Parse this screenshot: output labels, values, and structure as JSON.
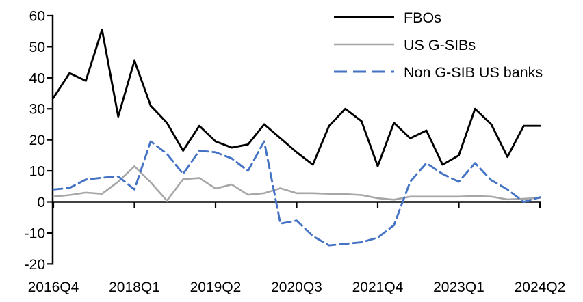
{
  "chart_data": {
    "type": "line",
    "x": [
      "2016Q4",
      "2017Q1",
      "2017Q2",
      "2017Q3",
      "2017Q4",
      "2018Q1",
      "2018Q2",
      "2018Q3",
      "2018Q4",
      "2019Q1",
      "2019Q2",
      "2019Q3",
      "2019Q4",
      "2020Q1",
      "2020Q2",
      "2020Q3",
      "2020Q4",
      "2021Q1",
      "2021Q2",
      "2021Q3",
      "2021Q4",
      "2022Q1",
      "2022Q2",
      "2022Q3",
      "2022Q4",
      "2023Q1",
      "2023Q2",
      "2023Q3",
      "2023Q4",
      "2024Q1",
      "2024Q2"
    ],
    "series": [
      {
        "name": "FBOs",
        "color": "#000000",
        "line_style": "solid",
        "values": [
          33.5,
          41.5,
          39,
          55.5,
          27.5,
          45.5,
          31,
          25.5,
          16.5,
          24.5,
          19.5,
          17.5,
          18.5,
          25,
          20.5,
          16,
          12,
          24.5,
          30,
          26,
          11.5,
          25.5,
          20.5,
          23,
          12,
          15,
          30,
          25,
          14.5,
          24.5,
          24.5
        ]
      },
      {
        "name": "US G-SIBs",
        "color": "#a6a6a6",
        "line_style": "solid",
        "values": [
          1.7,
          2.2,
          3,
          2.6,
          6.5,
          11.5,
          6.3,
          0.4,
          7.3,
          7.7,
          4.3,
          5.6,
          2.3,
          2.8,
          4.4,
          2.8,
          2.8,
          2.6,
          2.5,
          2.2,
          1.2,
          0.7,
          1.7,
          1.7,
          1.7,
          1.7,
          1.9,
          1.7,
          0.8,
          1,
          1.3
        ]
      },
      {
        "name": "Non G-SIB US banks",
        "color": "#4472c4",
        "line_style": "dashed",
        "values": [
          4,
          4.5,
          7.2,
          7.8,
          8.2,
          4,
          19.5,
          15.5,
          9,
          16.5,
          16,
          14,
          10,
          19.5,
          -7,
          -6,
          -11,
          -14,
          -13.5,
          -13,
          -11.5,
          -7.5,
          6.5,
          12.5,
          9,
          6.5,
          12.5,
          7,
          4,
          0,
          1.5
        ]
      }
    ],
    "ylim": [
      -20,
      60
    ],
    "y_ticks": [
      60,
      50,
      40,
      30,
      20,
      10,
      0,
      -10,
      -20
    ],
    "x_tick_labels": [
      "2016Q4",
      "2018Q1",
      "2019Q2",
      "2020Q3",
      "2021Q4",
      "2023Q1",
      "2024Q2"
    ],
    "x_tick_indices": [
      0,
      5,
      10,
      15,
      20,
      25,
      30
    ],
    "grid": false,
    "legend_position": "top-right",
    "axis_color": "#000000"
  }
}
